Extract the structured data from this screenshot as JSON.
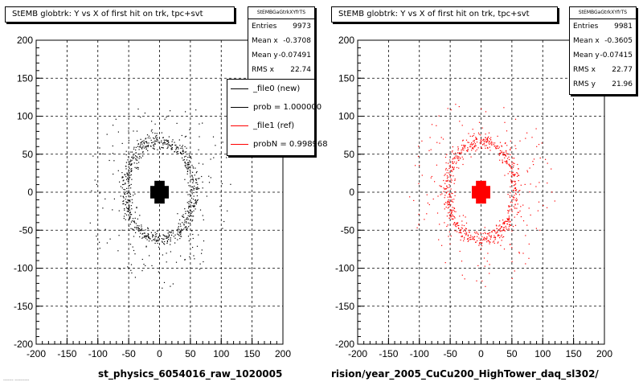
{
  "chart_data": [
    {
      "type": "scatter",
      "title": "StEMB globtrk: Y vs X of first hit on trk, tpc+svt",
      "xlabel": "st_physics_6054016_raw_1020005",
      "ylabel": "",
      "xlim": [
        -200,
        200
      ],
      "ylim": [
        -200,
        200
      ],
      "xticks": [
        -200,
        -150,
        -100,
        -50,
        0,
        50,
        100,
        150,
        200
      ],
      "yticks": [
        -200,
        -150,
        -100,
        -50,
        0,
        50,
        100,
        150,
        200
      ],
      "grid": true,
      "color": "#000000",
      "stats": {
        "header": "StEMBGaGtrkXYfrTS",
        "rows": [
          {
            "label": "Entries",
            "value": "9973"
          },
          {
            "label": "Mean x",
            "value": "-0.3708"
          },
          {
            "label": "Mean y",
            "value": "-0.07491"
          },
          {
            "label": "RMS x",
            "value": "22.74"
          }
        ]
      },
      "legend": [
        {
          "label": "_file0 (new)",
          "color": "#000000"
        },
        {
          "label": "prob = 1.000000",
          "color": "#000000"
        },
        {
          "label": "_file1 (ref)",
          "color": "#ff0000"
        },
        {
          "label": "probN = 0.998968",
          "color": "#ff0000"
        }
      ],
      "distribution": {
        "core_halfwidth": 15,
        "ring_radius_x": 55,
        "ring_radius_y": 65,
        "halo_radius": 120
      }
    },
    {
      "type": "scatter",
      "title": "StEMB globtrk: Y vs X of first hit on trk, tpc+svt",
      "xlabel": "rision/year_2005_CuCu200_HighTower_daq_sl302/",
      "ylabel": "",
      "xlim": [
        -200,
        200
      ],
      "ylim": [
        -200,
        200
      ],
      "xticks": [
        -200,
        -150,
        -100,
        -50,
        0,
        50,
        100,
        150,
        200
      ],
      "yticks": [
        -200,
        -150,
        -100,
        -50,
        0,
        50,
        100,
        150,
        200
      ],
      "grid": true,
      "color": "#ff0000",
      "stats": {
        "header": "StEMBGaGtrkXYfrTS",
        "rows": [
          {
            "label": "Entries",
            "value": "9981"
          },
          {
            "label": "Mean x",
            "value": "-0.3605"
          },
          {
            "label": "Mean y",
            "value": "-0.07415"
          },
          {
            "label": "RMS x",
            "value": "22.77"
          },
          {
            "label": "RMS y",
            "value": "21.96"
          }
        ]
      },
      "distribution": {
        "core_halfwidth": 15,
        "ring_radius_x": 55,
        "ring_radius_y": 65,
        "halo_radius": 120
      }
    }
  ],
  "footnote": "------- ----------"
}
